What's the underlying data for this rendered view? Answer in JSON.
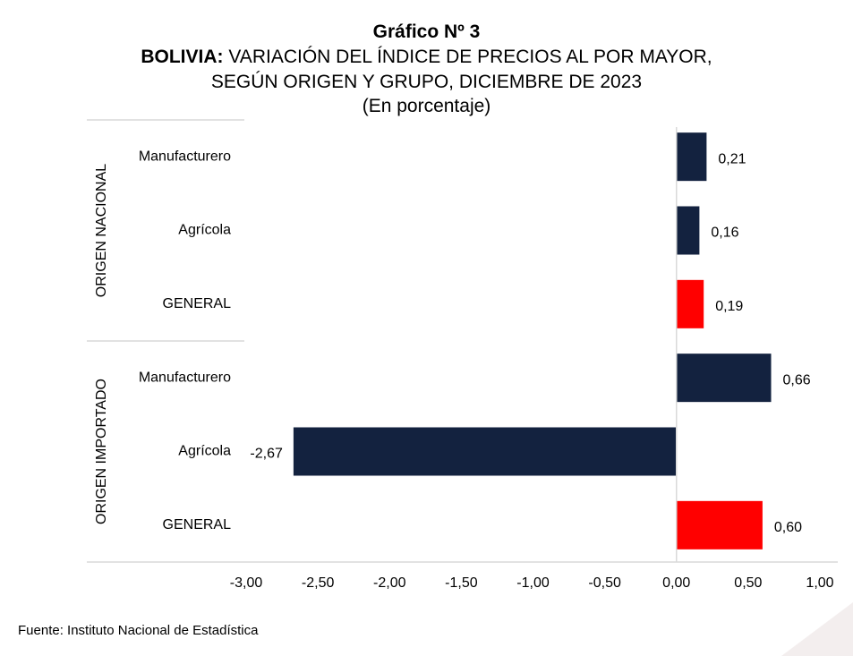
{
  "title": {
    "line1": "Gráfico Nº 3",
    "country": "BOLIVIA:",
    "line2_rest": "VARIACIÓN DEL ÍNDICE DE PRECIOS AL POR MAYOR,",
    "line3": "SEGÚN ORIGEN Y GRUPO, DICIEMBRE DE 2023",
    "line4": "(En porcentaje)"
  },
  "source": "Fuente: Instituto Nacional de Estadística",
  "colors": {
    "group": "#13223f",
    "general": "#ff0000"
  },
  "chart_data": {
    "type": "bar",
    "orientation": "horizontal",
    "groups": [
      {
        "name": "ORIGEN NACIONAL",
        "bars": [
          {
            "label": "Manufacturero",
            "value": 0.21,
            "value_label": "0,21",
            "kind": "group"
          },
          {
            "label": "Agrícola",
            "value": 0.16,
            "value_label": "0,16",
            "kind": "group"
          },
          {
            "label": "GENERAL",
            "value": 0.19,
            "value_label": "0,19",
            "kind": "general"
          }
        ]
      },
      {
        "name": "ORIGEN IMPORTADO",
        "bars": [
          {
            "label": "Manufacturero",
            "value": 0.66,
            "value_label": "0,66",
            "kind": "group"
          },
          {
            "label": "Agrícola",
            "value": -2.67,
            "value_label": "-2,67",
            "kind": "group"
          },
          {
            "label": "GENERAL",
            "value": 0.6,
            "value_label": "0,60",
            "kind": "general"
          }
        ]
      }
    ],
    "xlim": [
      -3.0,
      1.0
    ],
    "xticks": [
      -3.0,
      -2.5,
      -2.0,
      -1.5,
      -1.0,
      -0.5,
      0.0,
      0.5,
      1.0
    ],
    "xtick_labels": [
      "-3,00",
      "-2,50",
      "-2,00",
      "-1,50",
      "-1,00",
      "-0,50",
      "0,00",
      "0,50",
      "1,00"
    ],
    "grid": false,
    "legend": "none"
  }
}
